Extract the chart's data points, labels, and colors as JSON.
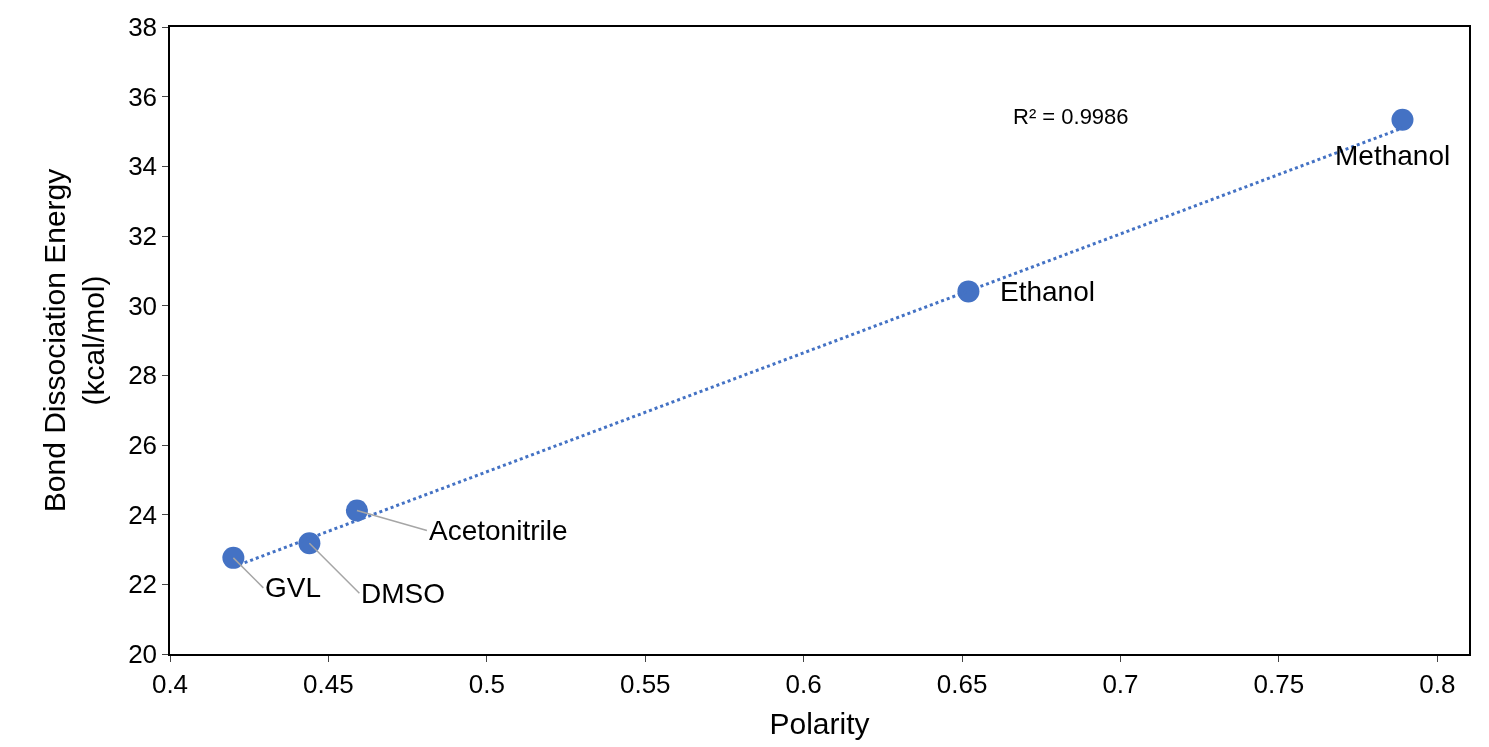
{
  "chart_data": {
    "type": "scatter",
    "xlabel": "Polarity",
    "ylabel": "Bond Dissociation Energy (kcal/mol)",
    "series": [
      {
        "color": "#4472c4",
        "x": [
          0.42,
          0.444,
          0.459,
          0.652,
          0.789
        ],
        "values": [
          22.76,
          23.18,
          24.12,
          30.41,
          35.34
        ],
        "marker": "circle"
      },
      {
        "type": "line",
        "color": "#4472c4",
        "x": [
          0.42,
          0.789
        ],
        "values": [
          22.5,
          35.1
        ],
        "line_style": "dotted",
        "marker": "none"
      }
    ],
    "annotations": [
      {
        "text": "GVL",
        "x": 0.42,
        "y": 22.76
      },
      {
        "text": "DMSO",
        "x": 0.444,
        "y": 23.18
      },
      {
        "text": "Acetonitrile",
        "x": 0.459,
        "y": 24.12
      },
      {
        "text": "Ethanol",
        "x": 0.652,
        "y": 30.41
      },
      {
        "text": "Methanol",
        "x": 0.789,
        "y": 35.34
      },
      "R² = 0.9986"
    ],
    "xlim": [
      0.4,
      0.81
    ],
    "xticks": [
      0.4,
      0.45,
      0.5,
      0.55,
      0.6,
      0.65,
      0.7,
      0.75,
      0.8
    ],
    "ylim": [
      20,
      38
    ],
    "yticks": [
      20,
      22,
      24,
      26,
      28,
      30,
      32,
      34,
      36,
      38
    ]
  }
}
